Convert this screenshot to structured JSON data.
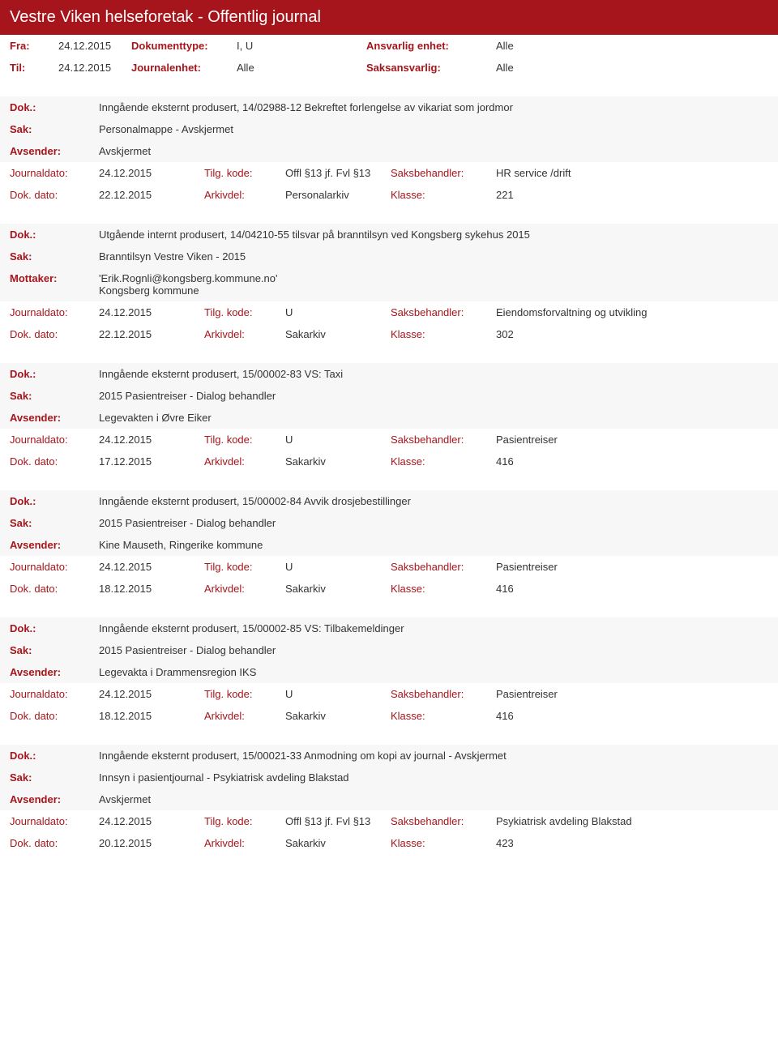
{
  "header": {
    "title": "Vestre Viken helseforetak - Offentlig journal"
  },
  "filters": {
    "fra_lbl": "Fra:",
    "fra": "24.12.2015",
    "til_lbl": "Til:",
    "til": "24.12.2015",
    "doktype_lbl": "Dokumenttype:",
    "doktype": "I, U",
    "jenhet_lbl": "Journalenhet:",
    "jenhet": "Alle",
    "ansv_lbl": "Ansvarlig enhet:",
    "ansv": "Alle",
    "saks_lbl": "Saksansvarlig:",
    "saks": "Alle"
  },
  "labels": {
    "dok": "Dok.:",
    "sak": "Sak:",
    "avsender": "Avsender:",
    "mottaker": "Mottaker:",
    "journaldato": "Journaldato:",
    "dokdato": "Dok. dato:",
    "tilgkode": "Tilg. kode:",
    "arkivdel": "Arkivdel:",
    "saksbeh": "Saksbehandler:",
    "klasse": "Klasse:"
  },
  "entries": [
    {
      "dok": "Inngående eksternt produsert, 14/02988-12 Bekreftet forlengelse av vikariat som jordmor",
      "sak": "Personalmappe - Avskjermet",
      "party_lbl": "Avsender:",
      "party": "Avskjermet",
      "jd": "24.12.2015",
      "tk": "Offl §13 jf. Fvl §13",
      "sb": "HR service /drift",
      "dd": "22.12.2015",
      "ad": "Personalarkiv",
      "kl": "221"
    },
    {
      "dok": "Utgående internt produsert, 14/04210-55 tilsvar på branntilsyn ved Kongsberg sykehus 2015",
      "sak": "Branntilsyn Vestre Viken - 2015",
      "party_lbl": "Mottaker:",
      "party": "'Erik.Rognli@kongsberg.kommune.no'\nKongsberg kommune",
      "jd": "24.12.2015",
      "tk": "U",
      "sb": "Eiendomsforvaltning og utvikling",
      "dd": "22.12.2015",
      "ad": "Sakarkiv",
      "kl": "302"
    },
    {
      "dok": "Inngående eksternt produsert, 15/00002-83 VS: Taxi",
      "sak": "2015 Pasientreiser - Dialog behandler",
      "party_lbl": "Avsender:",
      "party": "Legevakten i Øvre Eiker",
      "jd": "24.12.2015",
      "tk": "U",
      "sb": "Pasientreiser",
      "dd": "17.12.2015",
      "ad": "Sakarkiv",
      "kl": "416"
    },
    {
      "dok": "Inngående eksternt produsert, 15/00002-84 Avvik drosjebestillinger",
      "sak": "2015 Pasientreiser - Dialog behandler",
      "party_lbl": "Avsender:",
      "party": "Kine Mauseth, Ringerike kommune",
      "jd": "24.12.2015",
      "tk": "U",
      "sb": "Pasientreiser",
      "dd": "18.12.2015",
      "ad": "Sakarkiv",
      "kl": "416"
    },
    {
      "dok": "Inngående eksternt produsert, 15/00002-85 VS: Tilbakemeldinger",
      "sak": "2015 Pasientreiser - Dialog behandler",
      "party_lbl": "Avsender:",
      "party": "Legevakta i Drammensregion IKS",
      "jd": "24.12.2015",
      "tk": "U",
      "sb": "Pasientreiser",
      "dd": "18.12.2015",
      "ad": "Sakarkiv",
      "kl": "416"
    },
    {
      "dok": "Inngående eksternt produsert, 15/00021-33 Anmodning om kopi av journal - Avskjermet",
      "sak": "Innsyn i pasientjournal - Psykiatrisk avdeling Blakstad",
      "party_lbl": "Avsender:",
      "party": "Avskjermet",
      "jd": "24.12.2015",
      "tk": "Offl §13 jf. Fvl §13",
      "sb": "Psykiatrisk avdeling Blakstad",
      "dd": "20.12.2015",
      "ad": "Sakarkiv",
      "kl": "423"
    }
  ]
}
